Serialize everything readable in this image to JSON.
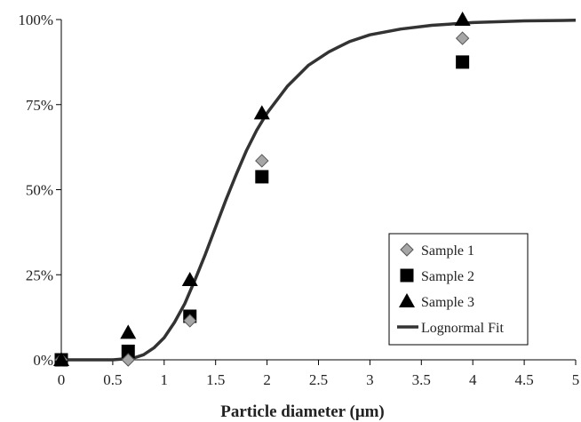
{
  "chart_data": {
    "type": "scatter",
    "xlabel": "Particle diameter (μm)",
    "ylabel": "",
    "xlim": [
      0,
      5
    ],
    "ylim": [
      0,
      1
    ],
    "x_ticks": [
      "0",
      "0.5",
      "1",
      "1.5",
      "2",
      "2.5",
      "3",
      "3.5",
      "4",
      "4.5",
      "5"
    ],
    "y_ticks": [
      "0%",
      "25%",
      "50%",
      "75%",
      "100%"
    ],
    "grid": false,
    "legend_position": "bottom-right",
    "series": [
      {
        "name": "Sample 1",
        "marker": "diamond",
        "color": "#a6a6a6",
        "x": [
          0,
          0.65,
          1.25,
          1.95,
          3.9
        ],
        "y": [
          0.0,
          0.0,
          0.115,
          0.585,
          0.945
        ]
      },
      {
        "name": "Sample 2",
        "marker": "square",
        "color": "#000000",
        "x": [
          0,
          0.65,
          1.25,
          1.95,
          3.9
        ],
        "y": [
          0.0,
          0.025,
          0.128,
          0.538,
          0.875
        ]
      },
      {
        "name": "Sample 3",
        "marker": "triangle",
        "color": "#000000",
        "x": [
          0,
          0.65,
          1.25,
          1.95,
          3.9
        ],
        "y": [
          0.0,
          0.08,
          0.235,
          0.725,
          1.0
        ]
      },
      {
        "name": "Lognormal Fit",
        "marker": "line",
        "color": "#333333",
        "x": [
          0,
          0.5,
          0.7,
          0.8,
          0.9,
          1.0,
          1.1,
          1.2,
          1.3,
          1.4,
          1.5,
          1.6,
          1.7,
          1.8,
          1.9,
          2.0,
          2.2,
          2.4,
          2.6,
          2.8,
          3.0,
          3.3,
          3.6,
          4.0,
          4.5,
          5.0
        ],
        "y": [
          0.0,
          0.0,
          0.005,
          0.015,
          0.035,
          0.065,
          0.11,
          0.165,
          0.235,
          0.31,
          0.39,
          0.47,
          0.545,
          0.615,
          0.675,
          0.725,
          0.805,
          0.865,
          0.905,
          0.935,
          0.955,
          0.972,
          0.983,
          0.991,
          0.996,
          0.998
        ]
      }
    ]
  }
}
